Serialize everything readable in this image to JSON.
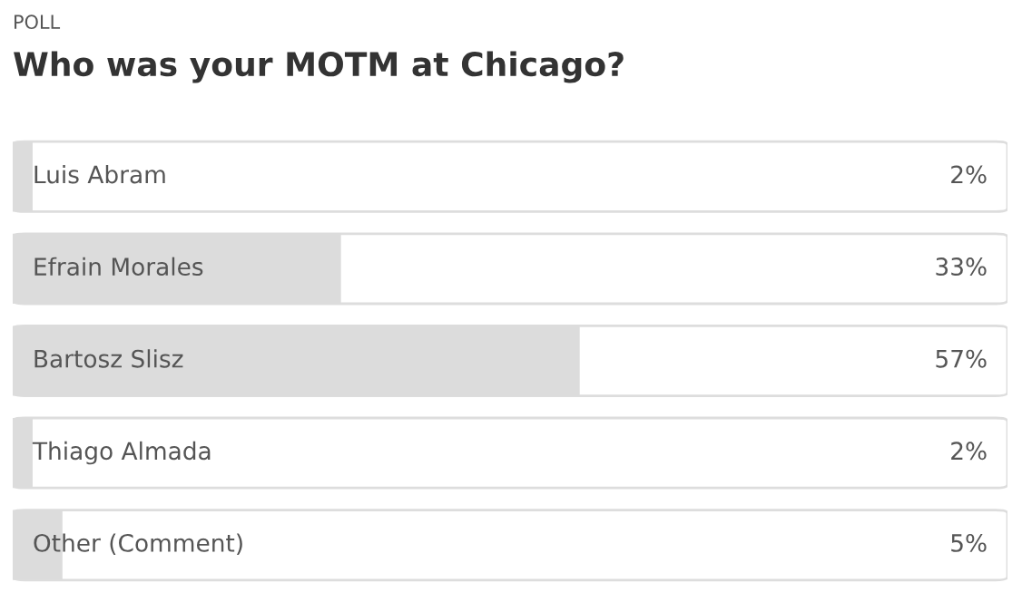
{
  "chart_data": {
    "type": "bar",
    "orientation": "horizontal",
    "subtitle": "POLL",
    "title": "Who was your MOTM at Chicago?",
    "categories": [
      "Luis Abram",
      "Efrain Morales",
      "Bartosz Slisz",
      "Thiago Almada",
      "Other (Comment)"
    ],
    "values": [
      2,
      33,
      57,
      2,
      5
    ],
    "value_labels": [
      "2%",
      "33%",
      "57%",
      "2%",
      "5%"
    ],
    "color": "#dcdcdc",
    "xlim": [
      0,
      100
    ]
  }
}
